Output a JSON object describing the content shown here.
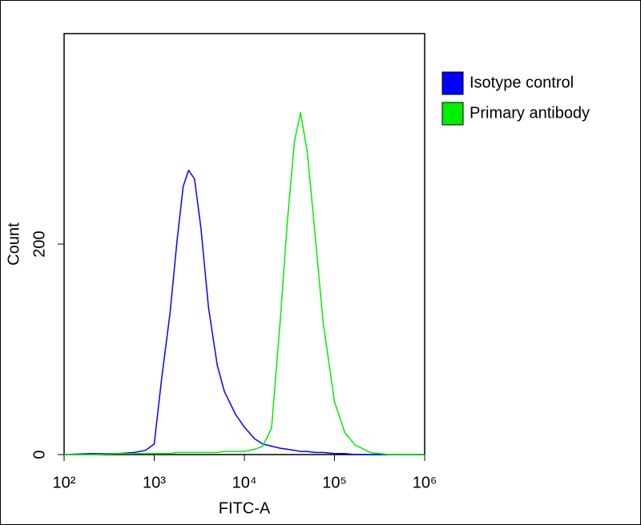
{
  "chart_data": {
    "type": "line",
    "x_label": "FITC-A",
    "y_label": "Count",
    "x": [
      100,
      200,
      400,
      600,
      800,
      1000,
      1200,
      1500,
      1800,
      2100,
      2400,
      2800,
      3300,
      4000,
      5000,
      6000,
      8000,
      10000,
      13000,
      16000,
      20000,
      25000,
      30000,
      36000,
      42000,
      50000,
      60000,
      75000,
      100000,
      130000,
      170000,
      250000,
      400000,
      1000000
    ],
    "series": [
      {
        "name": "Isotype control",
        "color": "#0000ff",
        "values": [
          0,
          1,
          1,
          2,
          4,
          10,
          70,
          135,
          205,
          255,
          270,
          262,
          215,
          140,
          85,
          60,
          38,
          26,
          15,
          10,
          8,
          6,
          5,
          4,
          3,
          3,
          2,
          2,
          1,
          1,
          0,
          0,
          0,
          0
        ]
      },
      {
        "name": "Primary antibody",
        "color": "#00ee00",
        "values": [
          0,
          0,
          1,
          1,
          1,
          1,
          1,
          1,
          2,
          2,
          2,
          2,
          2,
          2,
          2,
          3,
          3,
          3,
          5,
          8,
          25,
          128,
          222,
          298,
          325,
          287,
          215,
          125,
          50,
          21,
          9,
          2,
          0,
          0
        ]
      }
    ],
    "xscale": "log",
    "xlim": [
      100,
      1000000
    ],
    "xticks": [
      {
        "value": 100,
        "label": "10²"
      },
      {
        "value": 1000,
        "label": "10³"
      },
      {
        "value": 10000,
        "label": "10⁴"
      },
      {
        "value": 100000,
        "label": "10⁵"
      },
      {
        "value": 1000000,
        "label": "10⁶"
      }
    ],
    "ylim": [
      0,
      400
    ],
    "yticks": [
      0,
      200
    ]
  }
}
